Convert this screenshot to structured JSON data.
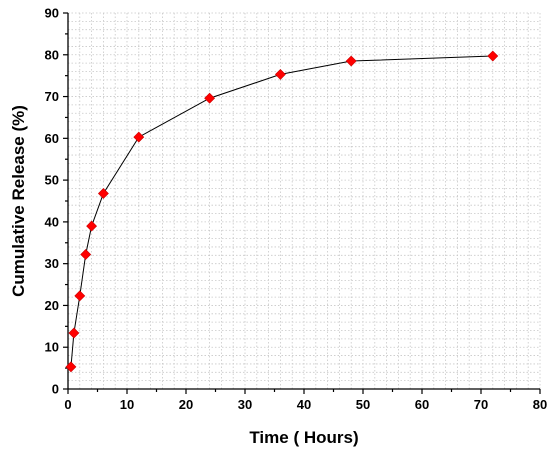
{
  "chart_data": {
    "type": "line",
    "xlabel": "Time ( Hours)",
    "ylabel": "Cumulative Release (%)",
    "xlim": [
      0,
      80
    ],
    "ylim": [
      0,
      90
    ],
    "x_ticks": [
      0,
      10,
      20,
      30,
      40,
      50,
      60,
      70,
      80
    ],
    "y_ticks": [
      0,
      10,
      20,
      30,
      40,
      50,
      60,
      70,
      80,
      90
    ],
    "grid": true,
    "series": [
      {
        "x": [
          0.5,
          1,
          2,
          3,
          4,
          6,
          12,
          24,
          36,
          48,
          72
        ],
        "y": [
          5.3,
          13.4,
          22.3,
          32.2,
          39.0,
          46.8,
          60.3,
          69.6,
          75.3,
          78.5,
          79.7
        ],
        "marker": "diamond",
        "marker_color": "#ff0000",
        "line_color": "#000000"
      }
    ]
  }
}
